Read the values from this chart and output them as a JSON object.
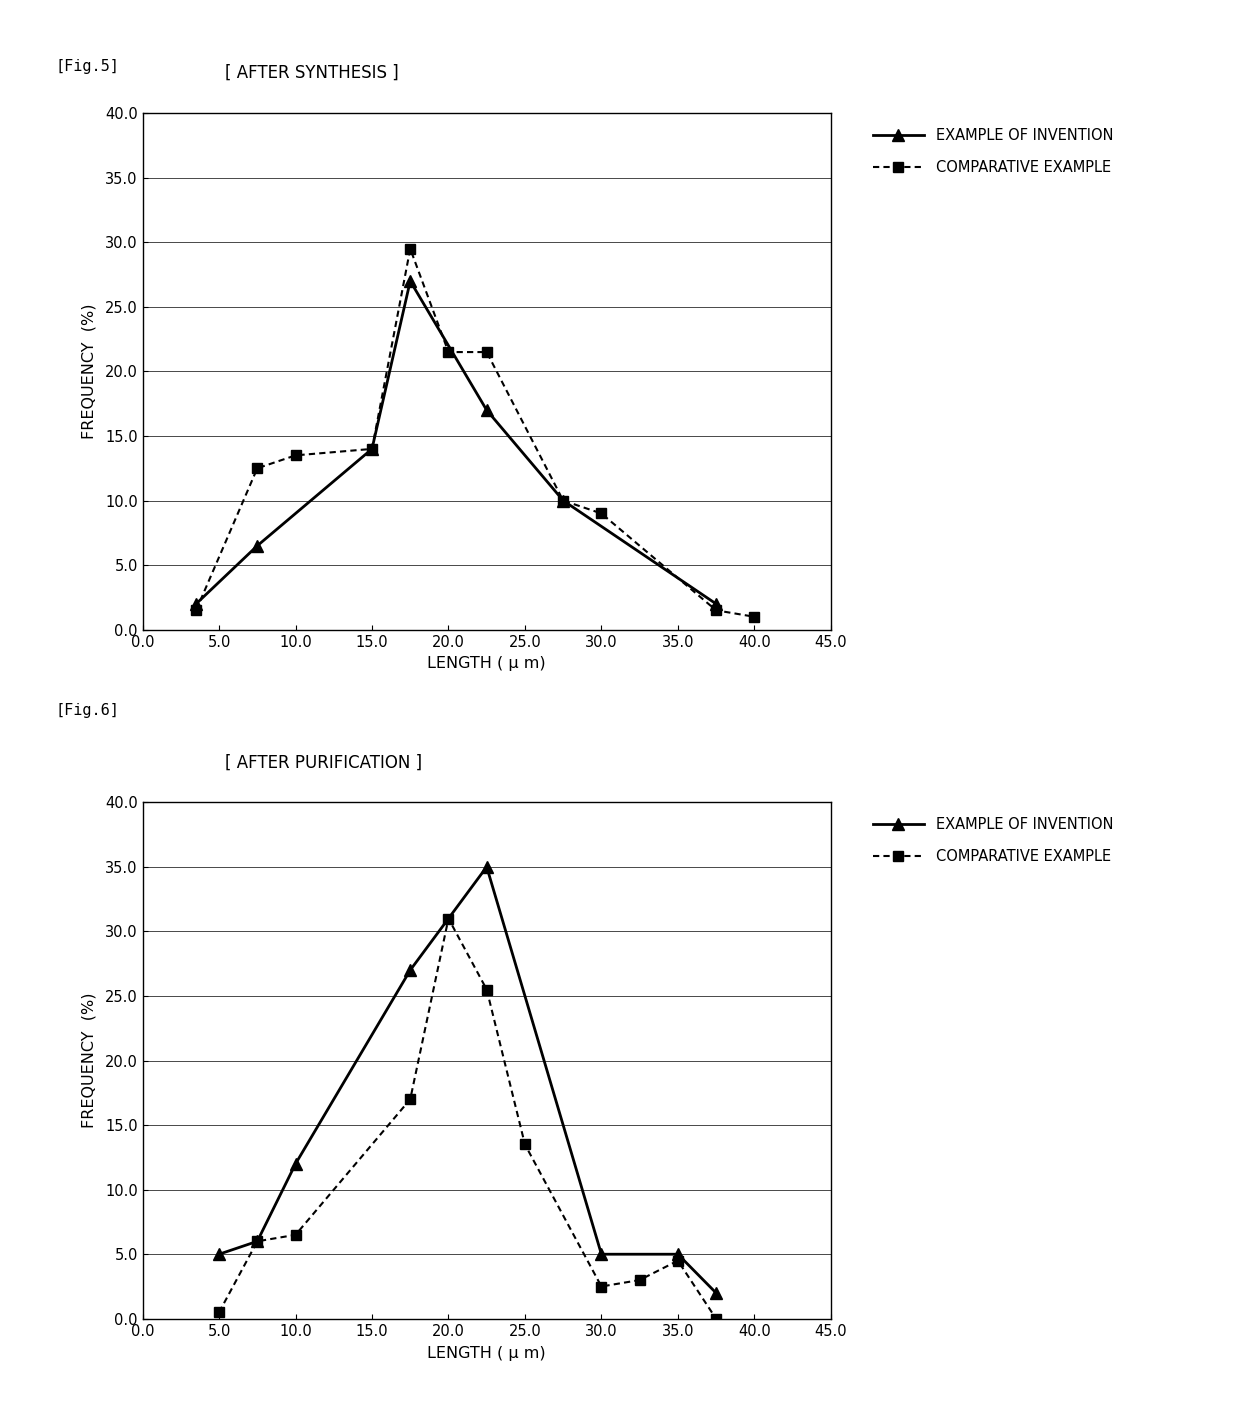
{
  "fig5": {
    "title": "[ AFTER SYNTHESIS ]",
    "invention_x": [
      3.5,
      7.5,
      15.0,
      17.5,
      22.5,
      27.5,
      37.5
    ],
    "invention_y": [
      2.0,
      6.5,
      14.0,
      27.0,
      17.0,
      10.0,
      2.0
    ],
    "comparative_x": [
      3.5,
      7.5,
      10.0,
      15.0,
      17.5,
      20.0,
      22.5,
      27.5,
      30.0,
      37.5,
      40.0
    ],
    "comparative_y": [
      1.5,
      12.5,
      13.5,
      14.0,
      29.5,
      21.5,
      21.5,
      10.0,
      9.0,
      1.5,
      1.0
    ]
  },
  "fig6": {
    "title": "[ AFTER PURIFICATION ]",
    "invention_x": [
      5.0,
      7.5,
      10.0,
      17.5,
      22.5,
      30.0,
      35.0,
      37.5
    ],
    "invention_y": [
      5.0,
      6.0,
      12.0,
      27.0,
      35.0,
      5.0,
      5.0,
      2.0
    ],
    "comparative_x": [
      5.0,
      7.5,
      10.0,
      17.5,
      20.0,
      22.5,
      25.0,
      30.0,
      32.5,
      35.0,
      37.5
    ],
    "comparative_y": [
      0.5,
      6.0,
      6.5,
      17.0,
      31.0,
      25.5,
      13.5,
      2.5,
      3.0,
      4.5,
      0.0
    ]
  },
  "xlabel": "LENGTH ( μ m)",
  "ylabel": "FREQUENCY  (%)",
  "xlim": [
    0.0,
    45.0
  ],
  "ylim": [
    0.0,
    40.0
  ],
  "xticks": [
    0.0,
    5.0,
    10.0,
    15.0,
    20.0,
    25.0,
    30.0,
    35.0,
    40.0,
    45.0
  ],
  "yticks": [
    0.0,
    5.0,
    10.0,
    15.0,
    20.0,
    25.0,
    30.0,
    35.0,
    40.0
  ],
  "legend_invention": "EXAMPLE OF INVENTION",
  "legend_comparative": "COMPARATIVE EXAMPLE",
  "fig5_label": "[Fig.5]",
  "fig6_label": "[Fig.6]",
  "bg_color": "#ffffff"
}
